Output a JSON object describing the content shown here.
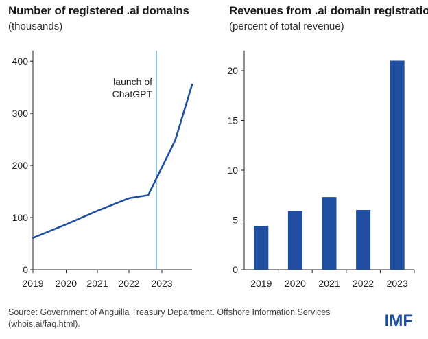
{
  "colors": {
    "series": "#1f4ea1",
    "launch_line": "#4aa7d8",
    "axis": "#222222",
    "logo": "#1f4ea1"
  },
  "source": "Source: Government of Anguilla Treasury Department. Offshore Information Services (whois.ai/faq.html).",
  "logo": "IMF",
  "chart_data": [
    {
      "type": "line",
      "title": "Number of registered .ai domains",
      "subtitle": "(thousands)",
      "xlabel": "",
      "ylabel": "",
      "x_ticks": [
        "2019",
        "2020",
        "2021",
        "2022",
        "2023"
      ],
      "y_ticks": [
        0,
        100,
        200,
        300,
        400
      ],
      "ylim": [
        0,
        420
      ],
      "series": [
        {
          "x": [
            "2019",
            "2020",
            "2021",
            "2022",
            "Aug 2022",
            "Mid 2023",
            "End 2023"
          ],
          "values": [
            61,
            87,
            113,
            137,
            143,
            248,
            355
          ]
        }
      ],
      "annotation": {
        "label_line1": "launch of",
        "label_line2": "ChatGPT",
        "at": "Nov 2022"
      },
      "grid": false
    },
    {
      "type": "bar",
      "title": "Revenues from .ai domain registration",
      "subtitle": "(percent of total revenue)",
      "xlabel": "",
      "ylabel": "",
      "categories": [
        "2019",
        "2020",
        "2021",
        "2022",
        "2023"
      ],
      "values": [
        4.4,
        5.9,
        7.3,
        6.0,
        21.0
      ],
      "y_ticks": [
        0,
        5,
        10,
        15,
        20
      ],
      "ylim": [
        0,
        22
      ],
      "grid": false
    }
  ]
}
